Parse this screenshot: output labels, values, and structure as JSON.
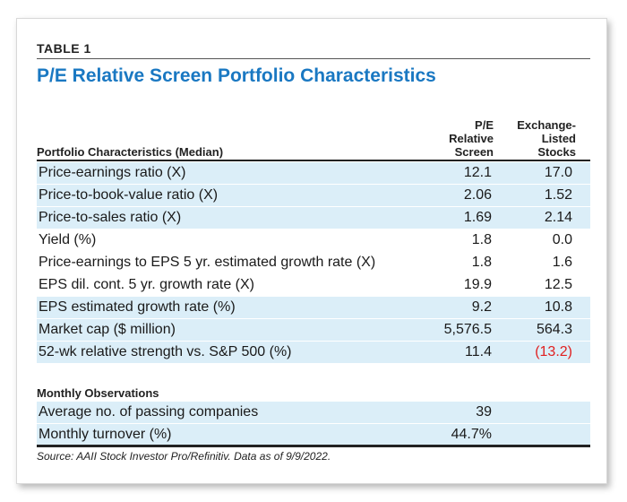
{
  "table": {
    "label": "TABLE 1",
    "title": "P/E Relative Screen Portfolio Characteristics",
    "column_headers": {
      "left": "Portfolio Characteristics (Median)",
      "col1": [
        "P/E",
        "Relative",
        "Screen"
      ],
      "col2": [
        "Exchange-",
        "Listed",
        "Stocks"
      ]
    },
    "rows": [
      {
        "label": "Price-earnings ratio (X)",
        "col1": "12.1",
        "col2": "17.0",
        "shaded": true
      },
      {
        "label": "Price-to-book-value ratio (X)",
        "col1": "2.06",
        "col2": "1.52",
        "shaded": true
      },
      {
        "label": "Price-to-sales ratio (X)",
        "col1": "1.69",
        "col2": "2.14",
        "shaded": true
      },
      {
        "label": "Yield (%)",
        "col1": "1.8",
        "col2": "0.0",
        "shaded": false
      },
      {
        "label": "Price-earnings to EPS 5 yr. estimated growth rate (X)",
        "col1": "1.8",
        "col2": "1.6",
        "shaded": false
      },
      {
        "label": "EPS dil. cont. 5 yr. growth rate (X)",
        "col1": "19.9",
        "col2": "12.5",
        "shaded": false
      },
      {
        "label": "EPS estimated growth rate (%)",
        "col1": "9.2",
        "col2": "10.8",
        "shaded": true
      },
      {
        "label": "Market cap ($ million)",
        "col1": "5,576.5",
        "col2": "564.3",
        "shaded": true
      },
      {
        "label": "52-wk relative strength vs. S&P 500 (%)",
        "col1": "11.4",
        "col2": "(13.2)",
        "shaded": true,
        "negative": true
      }
    ],
    "section2_title": "Monthly Observations",
    "section2_rows": [
      {
        "label": "Average no. of passing companies",
        "col1": "39",
        "col2": "",
        "shaded": true
      },
      {
        "label": "Monthly turnover (%)",
        "col1": "44.7%",
        "col2": "",
        "shaded": true
      }
    ],
    "source": "Source: AAII Stock Investor Pro/Refinitiv. Data as of 9/9/2022."
  },
  "colors": {
    "title": "#1a78c2",
    "shade": "#dbeef8",
    "negative": "#e02020"
  }
}
